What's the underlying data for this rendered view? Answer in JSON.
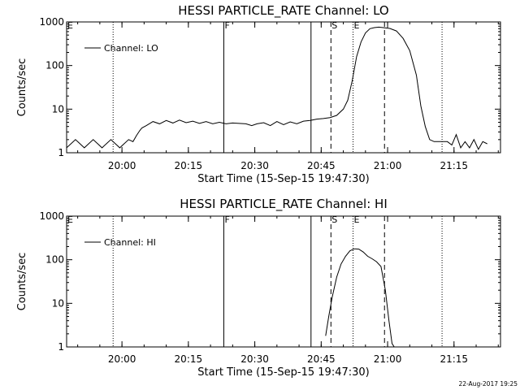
{
  "chart_data": [
    {
      "type": "line",
      "title": "HESSI PARTICLE_RATE Channel: LO",
      "xlabel": "Start Time (15-Sep-15 19:47:30)",
      "ylabel": "Counts/sec",
      "yscale": "log",
      "ylim": [
        1,
        1000
      ],
      "xlim_minutes": [
        0,
        98
      ],
      "x_ticks": [
        "20:00",
        "20:15",
        "20:30",
        "20:45",
        "21:00",
        "21:15"
      ],
      "x_tick_minutes": [
        12.5,
        27.5,
        42.5,
        57.5,
        72.5,
        87.5
      ],
      "y_ticks": [
        "1",
        "10",
        "100",
        "1000"
      ],
      "y_tick_values": [
        1,
        10,
        100,
        1000
      ],
      "legend": "Channel: LO",
      "series": [
        {
          "name": "Channel: LO",
          "x": [
            0,
            2,
            4,
            6,
            8,
            10,
            12,
            14,
            15,
            15.8,
            16.5,
            17,
            18,
            19.5,
            21,
            22.5,
            24,
            25.5,
            27,
            28.5,
            30,
            31.5,
            33,
            34.5,
            36,
            37.5,
            39,
            40.5,
            41.8,
            43,
            44.5,
            46,
            47.5,
            49,
            50.5,
            52,
            53.5,
            55,
            56.5,
            58,
            59.5,
            61,
            62.5,
            63.5,
            64.5,
            65.5,
            66.5,
            67.5,
            68.5,
            69.5,
            70.5,
            71.5,
            73,
            74.5,
            76,
            77.5,
            79,
            80,
            81,
            82,
            83,
            84,
            85,
            86,
            87,
            88,
            89,
            90,
            91,
            92,
            93,
            94,
            95
          ],
          "y": [
            1.3,
            2,
            1.3,
            2,
            1.3,
            2,
            1.3,
            2,
            1.8,
            2.5,
            3.2,
            3.7,
            4.2,
            5.2,
            4.6,
            5.5,
            4.8,
            5.6,
            4.9,
            5.3,
            4.7,
            5.2,
            4.6,
            5,
            4.6,
            4.8,
            4.7,
            4.6,
            4.2,
            4.6,
            4.9,
            4.2,
            5.2,
            4.4,
            5.1,
            4.6,
            5.3,
            5.5,
            5.9,
            6.1,
            6.4,
            7.2,
            10,
            16,
            45,
            160,
            350,
            560,
            700,
            740,
            760,
            740,
            710,
            620,
            420,
            220,
            60,
            12,
            4,
            2,
            1.8,
            1.8,
            1.8,
            1.8,
            1.5,
            2.6,
            1.3,
            1.8,
            1.3,
            2,
            1.2,
            1.8,
            1.6
          ]
        }
      ],
      "markers": {
        "dotted": [
          10.5,
          64.7,
          84.8
        ],
        "solid": [
          35.5,
          55.2
        ],
        "dashed": [
          59.7,
          71.8
        ],
        "labels": [
          {
            "text": "F",
            "minute": 35.5
          },
          {
            "text": "S",
            "minute": 59.7
          },
          {
            "text": "E",
            "minute": 64.7
          }
        ]
      }
    },
    {
      "type": "line",
      "title": "HESSI PARTICLE_RATE Channel: HI",
      "xlabel": "Start Time (15-Sep-15 19:47:30)",
      "ylabel": "Counts/sec",
      "yscale": "log",
      "ylim": [
        1,
        1000
      ],
      "xlim_minutes": [
        0,
        98
      ],
      "x_ticks": [
        "20:00",
        "20:15",
        "20:30",
        "20:45",
        "21:00",
        "21:15"
      ],
      "x_tick_minutes": [
        12.5,
        27.5,
        42.5,
        57.5,
        72.5,
        87.5
      ],
      "y_ticks": [
        "1",
        "10",
        "100",
        "1000"
      ],
      "y_tick_values": [
        1,
        10,
        100,
        1000
      ],
      "legend": "Channel: HI",
      "series": [
        {
          "name": "Channel: HI",
          "x": [
            58.5,
            59.2,
            60,
            61,
            62,
            63,
            64,
            65,
            66,
            67,
            68,
            69,
            70,
            71,
            72,
            72.8,
            73.5,
            74
          ],
          "y": [
            1.8,
            5,
            14,
            40,
            80,
            120,
            160,
            178,
            175,
            150,
            120,
            105,
            90,
            70,
            20,
            4,
            1.2,
            1
          ]
        }
      ],
      "markers": {
        "dotted": [
          10.5,
          64.7,
          84.8
        ],
        "solid": [
          35.5,
          55.2
        ],
        "dashed": [
          59.7,
          71.8
        ],
        "labels": [
          {
            "text": "F",
            "minute": 35.5
          },
          {
            "text": "S",
            "minute": 59.7
          },
          {
            "text": "E",
            "minute": 64.7
          }
        ]
      }
    }
  ],
  "footer": {
    "timestamp": "22-Aug-2017 19:25"
  }
}
